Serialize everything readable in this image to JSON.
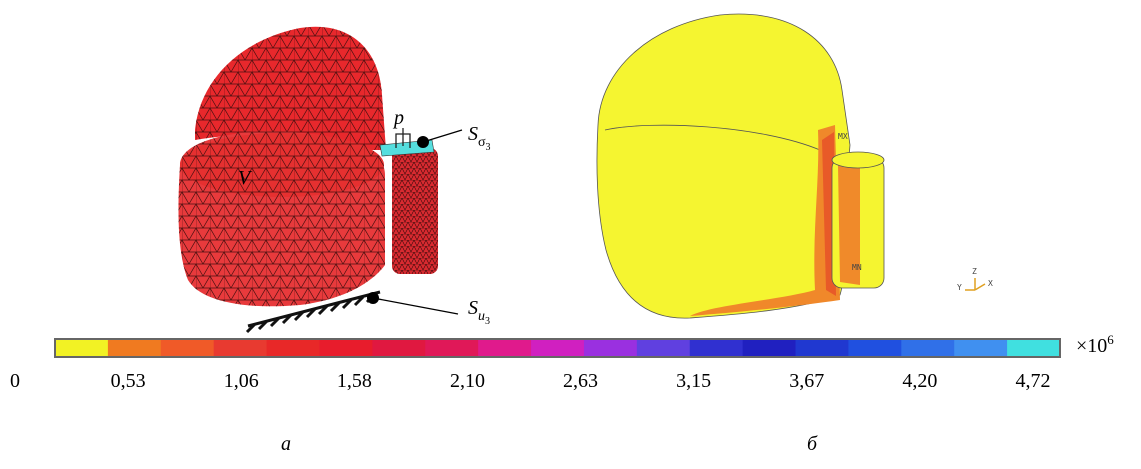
{
  "figure_a": {
    "labels": {
      "p": "p",
      "v": "V",
      "s_sigma": {
        "base": "S",
        "sub": "σ",
        "subsub": "3"
      },
      "s_u": {
        "base": "S",
        "sub": "u",
        "subsub": "3"
      }
    },
    "caption": "а"
  },
  "figure_b": {
    "labels": {
      "mx": "MX",
      "mn": "MN",
      "axis_y": "Y",
      "axis_z": "Z",
      "axis_x": "X"
    },
    "caption": "б"
  },
  "colorbar": {
    "colors": [
      "#f2f224",
      "#f07a20",
      "#f05a28",
      "#e83a30",
      "#e82828",
      "#e81c2c",
      "#e01840",
      "#e01858",
      "#e01a8c",
      "#d020c0",
      "#9a30e0",
      "#6040e0",
      "#3030d0",
      "#2020c0",
      "#2038d0",
      "#2050e0",
      "#3070e8",
      "#4090f0",
      "#40e0e0"
    ],
    "labels": [
      "0",
      "0,53",
      "1,06",
      "1,58",
      "2,10",
      "2,63",
      "3,15",
      "3,67",
      "4,20",
      "4,72"
    ],
    "multiplier": {
      "base": "×10",
      "exponent": "6"
    }
  }
}
